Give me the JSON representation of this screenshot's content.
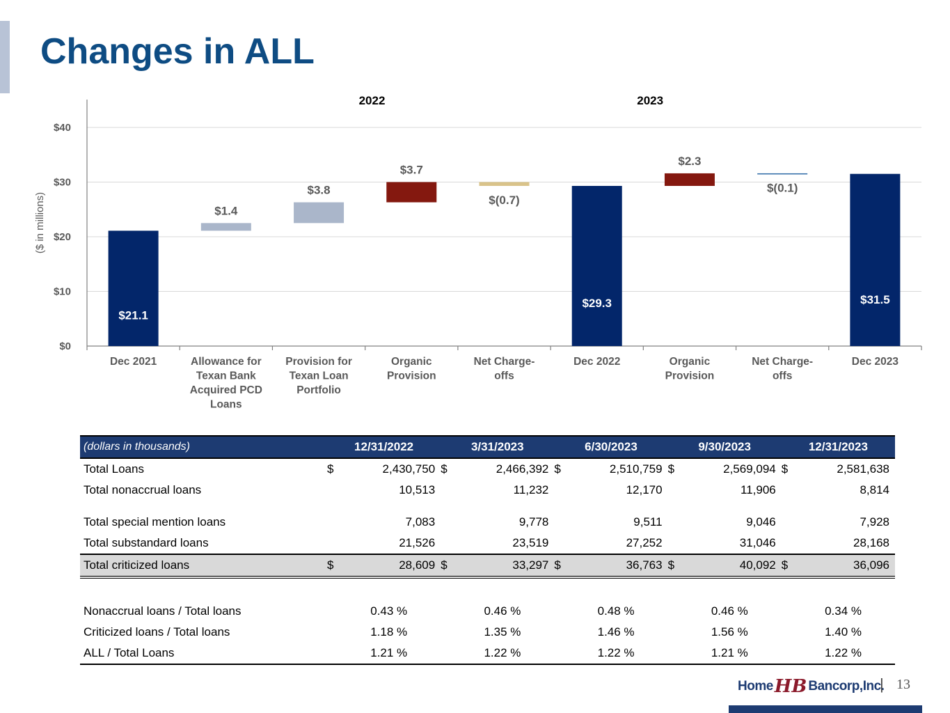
{
  "page": {
    "title": "Changes in ALL",
    "page_number": "13",
    "logo": {
      "part1": "Home",
      "mark": "HB",
      "part2": "Bancorp,Inc."
    },
    "separator": "|"
  },
  "colors": {
    "title": "#0e4c83",
    "total_bar": "#03266a",
    "acquisition_bar": "#aab6ca",
    "provision_bar": "#84180f",
    "chargeoff_2022": "#d9c38a",
    "chargeoff_2023": "#2e6aa6",
    "table_header": "#1d3b72"
  },
  "chart_data": {
    "type": "bar",
    "subtype": "waterfall",
    "ylabel": "($ in millions)",
    "ylim": [
      0,
      40
    ],
    "yticks": [
      "$0",
      "$10",
      "$20",
      "$30",
      "$40"
    ],
    "group_labels": [
      "2022",
      "2023"
    ],
    "categories": [
      "Dec 2021",
      "Allowance for Texan Bank Acquired PCD Loans",
      "Provision for Texan Loan Portfolio",
      "Organic Provision",
      "Net Charge-offs",
      "Dec 2022",
      "Organic Provision",
      "Net Charge-offs",
      "Dec 2023"
    ],
    "category_lines": [
      [
        "Dec 2021"
      ],
      [
        "Allowance for",
        "Texan Bank",
        "Acquired PCD",
        "Loans"
      ],
      [
        "Provision for",
        "Texan Loan",
        "Portfolio"
      ],
      [
        "Organic",
        "Provision"
      ],
      [
        "Net Charge-",
        "offs"
      ],
      [
        "Dec 2022"
      ],
      [
        "Organic",
        "Provision"
      ],
      [
        "Net Charge-",
        "offs"
      ],
      [
        "Dec 2023"
      ]
    ],
    "bars": [
      {
        "kind": "total",
        "low": 0,
        "high": 21.1,
        "value_label": "$21.1",
        "color": "#03266a"
      },
      {
        "kind": "change",
        "low": 21.1,
        "high": 22.5,
        "value_label": "$1.4",
        "color": "#aab6ca"
      },
      {
        "kind": "change",
        "low": 22.5,
        "high": 26.3,
        "value_label": "$3.8",
        "color": "#aab6ca"
      },
      {
        "kind": "change",
        "low": 26.3,
        "high": 30.0,
        "value_label": "$3.7",
        "color": "#84180f"
      },
      {
        "kind": "change",
        "low": 29.3,
        "high": 30.0,
        "value_label": "$(0.7)",
        "color": "#d9c38a"
      },
      {
        "kind": "total",
        "low": 0,
        "high": 29.3,
        "value_label": "$29.3",
        "color": "#03266a"
      },
      {
        "kind": "change",
        "low": 29.3,
        "high": 31.6,
        "value_label": "$2.3",
        "color": "#84180f"
      },
      {
        "kind": "change",
        "low": 31.5,
        "high": 31.6,
        "value_label": "$(0.1)",
        "color": "#2e6aa6"
      },
      {
        "kind": "total",
        "low": 0,
        "high": 31.5,
        "value_label": "$31.5",
        "color": "#03266a"
      }
    ],
    "grid": true,
    "legend": "none"
  },
  "table": {
    "header": [
      "(dollars in thousands)",
      "12/31/2022",
      "3/31/2023",
      "6/30/2023",
      "9/30/2023",
      "12/31/2023"
    ],
    "currency_symbol": "$",
    "rows": {
      "total_loans": {
        "label": "Total Loans",
        "values": [
          "2,430,750",
          "2,466,392",
          "2,510,759",
          "2,569,094",
          "2,581,638"
        ]
      },
      "nonaccrual": {
        "label": "Total nonaccrual loans",
        "values": [
          "10,513",
          "11,232",
          "12,170",
          "11,906",
          "8,814"
        ]
      },
      "special_mention": {
        "label": "Total special mention loans",
        "values": [
          "7,083",
          "9,778",
          "9,511",
          "9,046",
          "7,928"
        ]
      },
      "substandard": {
        "label": "Total substandard loans",
        "values": [
          "21,526",
          "23,519",
          "27,252",
          "31,046",
          "28,168"
        ]
      },
      "criticized": {
        "label": "Total criticized loans",
        "values": [
          "28,609",
          "33,297",
          "36,763",
          "40,092",
          "36,096"
        ]
      },
      "nonaccrual_ratio": {
        "label": "Nonaccrual loans / Total loans",
        "values": [
          "0.43 %",
          "0.46 %",
          "0.48 %",
          "0.46 %",
          "0.34 %"
        ]
      },
      "criticized_ratio": {
        "label": "Criticized loans / Total loans",
        "values": [
          "1.18 %",
          "1.35 %",
          "1.46 %",
          "1.56 %",
          "1.40 %"
        ]
      },
      "all_ratio": {
        "label": "ALL / Total Loans",
        "values": [
          "1.21 %",
          "1.22 %",
          "1.22 %",
          "1.21 %",
          "1.22 %"
        ]
      }
    }
  }
}
